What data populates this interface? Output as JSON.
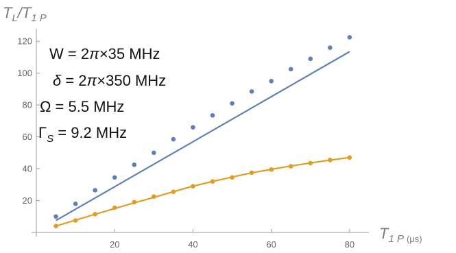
{
  "chart_data": {
    "type": "scatter",
    "title": "",
    "ylabel": {
      "main": "T",
      "sub1": "L",
      "slash": "/",
      "main2": "T",
      "sub2": "1 P"
    },
    "xlabel": {
      "main": "T",
      "sub": "1 P",
      "unit": "(μs)"
    },
    "xlim": [
      0,
      83
    ],
    "ylim": [
      0,
      130
    ],
    "x_ticks": [
      20,
      40,
      60,
      80
    ],
    "y_ticks": [
      20,
      40,
      60,
      80,
      100,
      120
    ],
    "grid": false,
    "series": [
      {
        "color": "#5e81b5",
        "points_x": [
          5,
          10,
          15,
          20,
          25,
          30,
          35,
          40,
          45,
          50,
          55,
          60,
          65,
          70,
          75,
          80
        ],
        "points_y": [
          10,
          18,
          26.5,
          34.5,
          42.5,
          50,
          58.5,
          66,
          73.5,
          81,
          88.5,
          95,
          102.5,
          109,
          116,
          122.5
        ],
        "fit_x": [
          5,
          80
        ],
        "fit_y": [
          7.5,
          113.5
        ]
      },
      {
        "color": "#e19c24",
        "points_x": [
          5,
          10,
          15,
          20,
          25,
          30,
          35,
          40,
          45,
          50,
          55,
          60,
          65,
          70,
          75,
          80
        ],
        "points_y": [
          4,
          7.5,
          11.5,
          15.5,
          19,
          22.5,
          25.5,
          29,
          32,
          34.5,
          37.5,
          39.5,
          41.5,
          43.5,
          45.5,
          47
        ],
        "fit_x": [
          5,
          10,
          15,
          20,
          25,
          30,
          35,
          40,
          45,
          50,
          55,
          60,
          65,
          70,
          75,
          80
        ],
        "fit_y": [
          4,
          7.7,
          11.4,
          15,
          18.6,
          22,
          25.6,
          29,
          32,
          34.8,
          37.4,
          39.6,
          41.7,
          43.6,
          45.4,
          47
        ]
      }
    ],
    "annotations": [
      {
        "parts": [
          "W = 2",
          "π",
          "×35 MHz"
        ],
        "italic": [
          false,
          true,
          false
        ]
      },
      {
        "parts": [
          "δ",
          " = 2",
          "π",
          "×350 MHz"
        ],
        "italic": [
          true,
          false,
          true,
          false
        ]
      },
      {
        "parts": [
          "Ω = 5.5 MHz"
        ],
        "italic": [
          false
        ]
      },
      {
        "parts": [
          "Γ",
          "S",
          " = 9.2 MHz"
        ],
        "italic": [
          false,
          true,
          false
        ],
        "sub_index": 1
      }
    ]
  }
}
